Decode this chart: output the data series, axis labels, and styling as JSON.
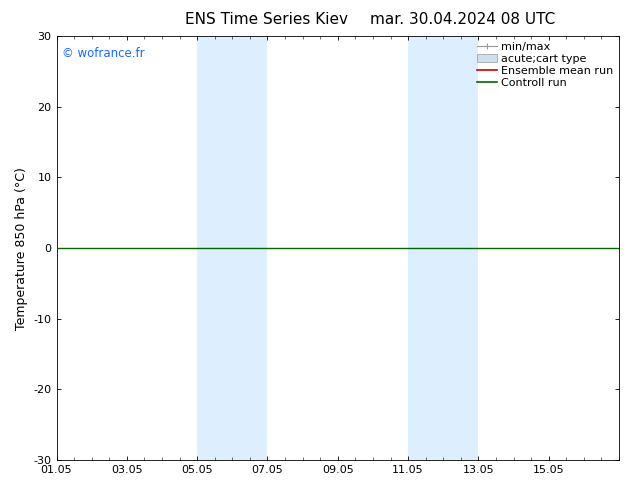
{
  "title_left": "ENS Time Series Kiev",
  "title_right": "mar. 30.04.2024 08 UTC",
  "ylabel": "Temperature 850 hPa (°C)",
  "ylim": [
    -30,
    30
  ],
  "yticks": [
    -30,
    -20,
    -10,
    0,
    10,
    20,
    30
  ],
  "xtick_labels": [
    "01.05",
    "03.05",
    "05.05",
    "07.05",
    "09.05",
    "11.05",
    "13.05",
    "15.05"
  ],
  "xtick_positions": [
    0,
    2,
    4,
    6,
    8,
    10,
    12,
    14
  ],
  "xmin": 0,
  "xmax": 16,
  "background_color": "#ffffff",
  "plot_bg_color": "#ffffff",
  "watermark": "© wofrance.fr",
  "watermark_color": "#1a6aff",
  "zero_line_color": "#006600",
  "zero_line_y": 0,
  "shaded_bands": [
    {
      "x_start": 4.0,
      "x_end": 6.0,
      "color": "#ddeeff"
    },
    {
      "x_start": 10.0,
      "x_end": 12.0,
      "color": "#ddeeff"
    }
  ],
  "legend_items": [
    {
      "label": "min/max",
      "type": "minmax",
      "color": "#999999"
    },
    {
      "label": "acute;cart type",
      "type": "band",
      "color": "#cce0f0"
    },
    {
      "label": "Ensemble mean run",
      "type": "line",
      "color": "#cc0000",
      "lw": 1.2
    },
    {
      "label": "Controll run",
      "type": "line",
      "color": "#006600",
      "lw": 1.2
    }
  ],
  "title_fontsize": 11,
  "axis_label_fontsize": 9,
  "tick_fontsize": 8,
  "legend_fontsize": 8
}
